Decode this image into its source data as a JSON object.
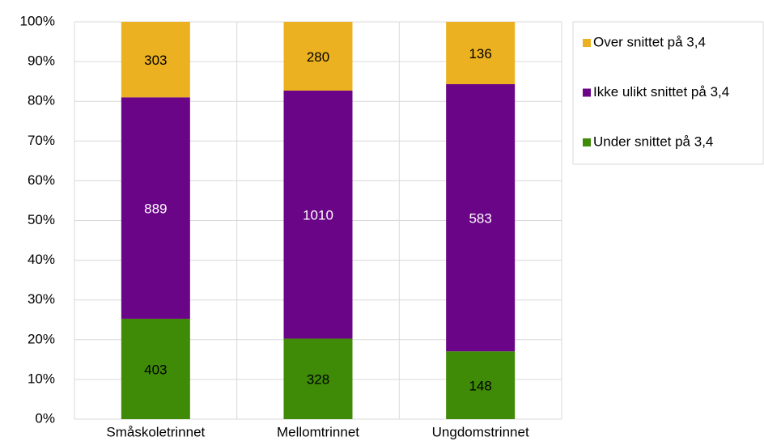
{
  "chart_data": {
    "type": "bar",
    "stack": "percent",
    "categories": [
      "Småskoletrinnet",
      "Mellomtrinnet",
      "Ungdomstrinnet"
    ],
    "series": [
      {
        "name": "Under snittet på 3,4",
        "color": "#3f8a06",
        "label_color": "#000000",
        "values": [
          403,
          328,
          148
        ]
      },
      {
        "name": "Ikke ulikt snittet på 3,4",
        "color": "#6a0587",
        "label_color": "#ffffff",
        "values": [
          889,
          1010,
          583
        ]
      },
      {
        "name": "Over snittet på 3,4",
        "color": "#ecb120",
        "label_color": "#000000",
        "values": [
          303,
          280,
          136
        ]
      }
    ],
    "ylim": [
      0,
      100
    ],
    "yticks": [
      {
        "value": 0,
        "label": "0%"
      },
      {
        "value": 10,
        "label": "10%"
      },
      {
        "value": 20,
        "label": "20%"
      },
      {
        "value": 30,
        "label": "30%"
      },
      {
        "value": 40,
        "label": "40%"
      },
      {
        "value": 50,
        "label": "50%"
      },
      {
        "value": 60,
        "label": "60%"
      },
      {
        "value": 70,
        "label": "70%"
      },
      {
        "value": 80,
        "label": "80%"
      },
      {
        "value": 90,
        "label": "90%"
      },
      {
        "value": 100,
        "label": "100%"
      }
    ],
    "grid": true,
    "legend": "right"
  }
}
